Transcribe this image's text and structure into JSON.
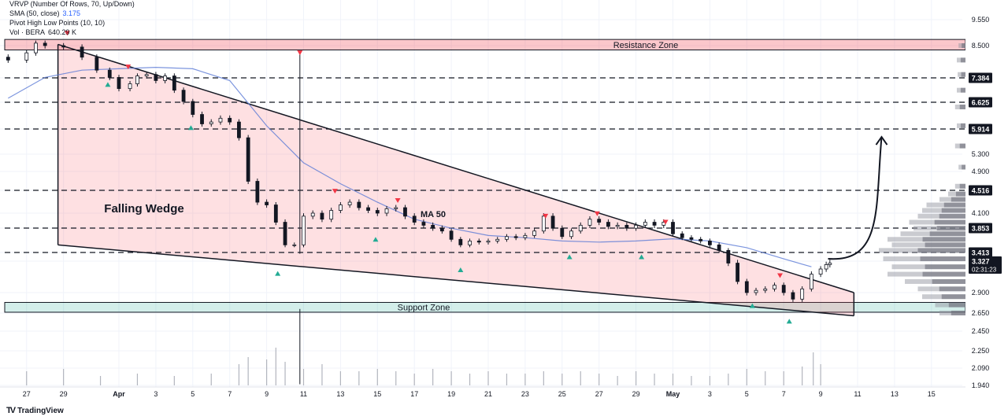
{
  "indicators": [
    {
      "label": "VRVP (Number Of Rows, 70, Up/Down)",
      "value": ""
    },
    {
      "label": "SMA (50, close)",
      "value": "3.175"
    },
    {
      "label": "Pivot High Low Points (10, 10)",
      "value": ""
    },
    {
      "label": "Vol · BERA",
      "value": "640.29 K"
    }
  ],
  "brand": {
    "name": "TradingView",
    "logo_icon": "tradingview-logo-icon"
  },
  "chart_data": {
    "type": "line",
    "series_type": "candlestick",
    "price_scale": {
      "ticks": [
        "9.550",
        "8.500",
        "7.384",
        "6.625",
        "5.914",
        "5.300",
        "4.900",
        "4.516",
        "4.100",
        "3.853",
        "3.413",
        "3.327",
        "2.900",
        "2.650",
        "2.450",
        "2.250",
        "2.090",
        "1.940"
      ],
      "highlighted": [
        "7.384",
        "6.625",
        "5.914",
        "4.516",
        "3.853",
        "3.413"
      ],
      "last_price": "3.327",
      "countdown": "02:31:23",
      "last_price_color": "#131722"
    },
    "time_axis": {
      "ticks": [
        "27",
        "29",
        "Apr",
        "3",
        "5",
        "7",
        "9",
        "11",
        "13",
        "15",
        "17",
        "19",
        "21",
        "23",
        "25",
        "27",
        "29",
        "May",
        "3",
        "5",
        "7",
        "9",
        "11",
        "13",
        "15"
      ],
      "tick_days": [
        -5,
        -3,
        0,
        2,
        4,
        6,
        8,
        10,
        12,
        14,
        16,
        18,
        20,
        22,
        24,
        26,
        28,
        30,
        32,
        34,
        36,
        38,
        40,
        42,
        44
      ]
    },
    "levels": [
      7.384,
      6.625,
      5.914,
      4.516,
      3.853,
      3.413
    ],
    "zones": [
      {
        "label": "Resistance Zone",
        "low": 8.35,
        "high": 8.75,
        "color": "#f23645"
      },
      {
        "label": "Support Zone",
        "low": 2.66,
        "high": 2.78,
        "color": "#22ab94"
      }
    ],
    "wedge": {
      "label": "Falling Wedge",
      "upper": [
        [
          -3.3,
          8.55
        ],
        [
          39.8,
          2.9
        ]
      ],
      "lower": [
        [
          -3.3,
          3.55
        ],
        [
          39.8,
          2.62
        ]
      ]
    },
    "ma_label": "MA 50",
    "sma50": [
      [
        -6,
        6.75
      ],
      [
        -4,
        7.4
      ],
      [
        -2,
        7.65
      ],
      [
        0,
        7.7
      ],
      [
        2,
        7.75
      ],
      [
        4,
        7.7
      ],
      [
        6,
        7.3
      ],
      [
        8,
        6.0
      ],
      [
        10,
        5.1
      ],
      [
        12,
        4.65
      ],
      [
        14,
        4.3
      ],
      [
        16,
        4.0
      ],
      [
        18,
        3.85
      ],
      [
        20,
        3.72
      ],
      [
        22,
        3.68
      ],
      [
        24,
        3.62
      ],
      [
        26,
        3.6
      ],
      [
        28,
        3.62
      ],
      [
        30,
        3.66
      ],
      [
        32,
        3.62
      ],
      [
        34,
        3.5
      ],
      [
        36,
        3.35
      ],
      [
        37.5,
        3.25
      ]
    ],
    "price": [
      [
        -7,
        8.1
      ],
      [
        -6,
        8.0
      ],
      [
        -5,
        8.25
      ],
      [
        -4.5,
        8.6
      ],
      [
        -4,
        8.5
      ],
      [
        -3,
        8.45
      ],
      [
        -2,
        8.1
      ],
      [
        -1.2,
        7.65
      ],
      [
        -0.5,
        7.4
      ],
      [
        0,
        7.05
      ],
      [
        0.6,
        7.2
      ],
      [
        1,
        7.45
      ],
      [
        1.5,
        7.5
      ],
      [
        2,
        7.3
      ],
      [
        2.5,
        7.45
      ],
      [
        3,
        7.0
      ],
      [
        3.5,
        6.65
      ],
      [
        4,
        6.3
      ],
      [
        4.5,
        6.05
      ],
      [
        5,
        6.1
      ],
      [
        5.5,
        6.2
      ],
      [
        6,
        6.1
      ],
      [
        6.5,
        5.7
      ],
      [
        7,
        4.7
      ],
      [
        7.5,
        4.3
      ],
      [
        8,
        4.25
      ],
      [
        8.5,
        3.95
      ],
      [
        9,
        3.55
      ],
      [
        9.5,
        3.55
      ],
      [
        10,
        4.05
      ],
      [
        10.5,
        4.1
      ],
      [
        11,
        4.0
      ],
      [
        11.5,
        4.15
      ],
      [
        12,
        4.25
      ],
      [
        12.5,
        4.3
      ],
      [
        13,
        4.2
      ],
      [
        13.5,
        4.15
      ],
      [
        14,
        4.1
      ],
      [
        14.5,
        4.18
      ],
      [
        15,
        4.2
      ],
      [
        15.5,
        4.05
      ],
      [
        16,
        3.95
      ],
      [
        16.5,
        3.9
      ],
      [
        17,
        3.85
      ],
      [
        17.5,
        3.8
      ],
      [
        18,
        3.65
      ],
      [
        18.5,
        3.55
      ],
      [
        19,
        3.62
      ],
      [
        19.5,
        3.6
      ],
      [
        20,
        3.62
      ],
      [
        20.5,
        3.65
      ],
      [
        21,
        3.7
      ],
      [
        21.5,
        3.68
      ],
      [
        22,
        3.72
      ],
      [
        22.5,
        3.8
      ],
      [
        23,
        4.05
      ],
      [
        23.5,
        3.85
      ],
      [
        24,
        3.7
      ],
      [
        24.5,
        3.8
      ],
      [
        25,
        3.9
      ],
      [
        25.5,
        4.0
      ],
      [
        26,
        3.95
      ],
      [
        26.5,
        3.88
      ],
      [
        27,
        3.9
      ],
      [
        27.5,
        3.85
      ],
      [
        28,
        3.9
      ],
      [
        28.5,
        3.95
      ],
      [
        29,
        3.9
      ],
      [
        29.5,
        3.95
      ],
      [
        30,
        3.75
      ],
      [
        30.5,
        3.68
      ],
      [
        31,
        3.65
      ],
      [
        31.5,
        3.62
      ],
      [
        32,
        3.55
      ],
      [
        32.5,
        3.45
      ],
      [
        33,
        3.3
      ],
      [
        33.5,
        3.05
      ],
      [
        34,
        2.9
      ],
      [
        34.5,
        2.93
      ],
      [
        35,
        2.95
      ],
      [
        35.5,
        3.0
      ],
      [
        36,
        2.9
      ],
      [
        36.5,
        2.82
      ],
      [
        37,
        2.95
      ],
      [
        37.5,
        3.15
      ],
      [
        38,
        3.22
      ],
      [
        38.3,
        3.28
      ],
      [
        38.5,
        3.3
      ]
    ],
    "pivot_highs": [
      [
        -2.8,
        9.0
      ],
      [
        0.5,
        7.76
      ],
      [
        9.8,
        8.25
      ],
      [
        11.7,
        4.5
      ],
      [
        15.1,
        4.33
      ],
      [
        23.1,
        4.05
      ],
      [
        25.9,
        4.09
      ],
      [
        29.6,
        3.95
      ],
      [
        35.8,
        3.13
      ]
    ],
    "pivot_lows": [
      [
        -0.6,
        7.18
      ],
      [
        3.9,
        5.95
      ],
      [
        8.6,
        3.16
      ],
      [
        13.9,
        3.65
      ],
      [
        18.5,
        3.21
      ],
      [
        24.4,
        3.37
      ],
      [
        28.3,
        3.37
      ],
      [
        34.3,
        2.74
      ],
      [
        36.3,
        2.56
      ]
    ],
    "volume": [
      [
        -7,
        0.25
      ],
      [
        -5,
        0.3
      ],
      [
        -3,
        0.35
      ],
      [
        -1,
        0.2
      ],
      [
        1,
        0.25
      ],
      [
        3,
        0.2
      ],
      [
        5,
        0.25
      ],
      [
        6.5,
        0.45
      ],
      [
        7,
        0.6
      ],
      [
        8,
        0.55
      ],
      [
        8.5,
        0.8
      ],
      [
        9,
        0.5
      ],
      [
        10,
        0.35
      ],
      [
        11,
        0.45
      ],
      [
        12,
        0.3
      ],
      [
        13,
        0.3
      ],
      [
        14,
        0.35
      ],
      [
        15,
        0.3
      ],
      [
        16,
        0.25
      ],
      [
        17,
        0.35
      ],
      [
        18,
        0.3
      ],
      [
        19,
        0.25
      ],
      [
        20,
        0.3
      ],
      [
        21,
        0.25
      ],
      [
        22,
        0.25
      ],
      [
        23,
        0.3
      ],
      [
        24,
        0.25
      ],
      [
        25,
        0.3
      ],
      [
        26,
        0.25
      ],
      [
        27,
        0.2
      ],
      [
        28,
        0.3
      ],
      [
        29,
        0.25
      ],
      [
        30,
        0.25
      ],
      [
        31,
        0.2
      ],
      [
        32,
        0.2
      ],
      [
        33,
        0.25
      ],
      [
        34,
        0.35
      ],
      [
        35,
        0.3
      ],
      [
        36,
        0.3
      ],
      [
        37,
        0.4
      ],
      [
        37.6,
        0.7
      ],
      [
        38,
        0.45
      ]
    ],
    "vrvp_profile": [
      [
        2.65,
        0.3
      ],
      [
        2.75,
        0.35
      ],
      [
        2.85,
        0.5
      ],
      [
        2.95,
        0.55
      ],
      [
        3.05,
        0.7
      ],
      [
        3.15,
        0.9
      ],
      [
        3.25,
        0.85
      ],
      [
        3.35,
        0.95
      ],
      [
        3.45,
        1.0
      ],
      [
        3.55,
        0.85
      ],
      [
        3.65,
        0.9
      ],
      [
        3.75,
        0.75
      ],
      [
        3.85,
        0.6
      ],
      [
        3.95,
        0.65
      ],
      [
        4.05,
        0.55
      ],
      [
        4.15,
        0.5
      ],
      [
        4.25,
        0.45
      ],
      [
        4.35,
        0.3
      ],
      [
        4.45,
        0.2
      ],
      [
        4.6,
        0.12
      ],
      [
        5.0,
        0.08
      ],
      [
        5.5,
        0.12
      ],
      [
        6.0,
        0.1
      ],
      [
        6.5,
        0.12
      ],
      [
        7.0,
        0.1
      ],
      [
        7.5,
        0.09
      ],
      [
        8.0,
        0.1
      ],
      [
        8.5,
        0.08
      ]
    ],
    "projection_arrow": {
      "from": [
        38.4,
        3.35
      ],
      "to": [
        41.3,
        5.72
      ]
    }
  }
}
